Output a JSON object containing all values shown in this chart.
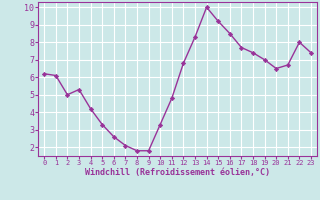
{
  "x": [
    0,
    1,
    2,
    3,
    4,
    5,
    6,
    7,
    8,
    9,
    10,
    11,
    12,
    13,
    14,
    15,
    16,
    17,
    18,
    19,
    20,
    21,
    22,
    23
  ],
  "y": [
    6.2,
    6.1,
    5.0,
    5.3,
    4.2,
    3.3,
    2.6,
    2.1,
    1.8,
    1.8,
    3.3,
    4.8,
    6.8,
    8.3,
    10.0,
    9.2,
    8.5,
    7.7,
    7.4,
    7.0,
    6.5,
    6.7,
    8.0,
    7.4
  ],
  "line_color": "#993399",
  "marker": "D",
  "marker_size": 2.2,
  "line_width": 1.0,
  "bg_color": "#cce8e8",
  "grid_color": "#ffffff",
  "xlabel": "Windchill (Refroidissement éolien,°C)",
  "xlabel_color": "#993399",
  "tick_color": "#993399",
  "ylim": [
    1.5,
    10.3
  ],
  "xlim": [
    -0.5,
    23.5
  ],
  "yticks": [
    2,
    3,
    4,
    5,
    6,
    7,
    8,
    9,
    10
  ],
  "xticks": [
    0,
    1,
    2,
    3,
    4,
    5,
    6,
    7,
    8,
    9,
    10,
    11,
    12,
    13,
    14,
    15,
    16,
    17,
    18,
    19,
    20,
    21,
    22,
    23
  ]
}
